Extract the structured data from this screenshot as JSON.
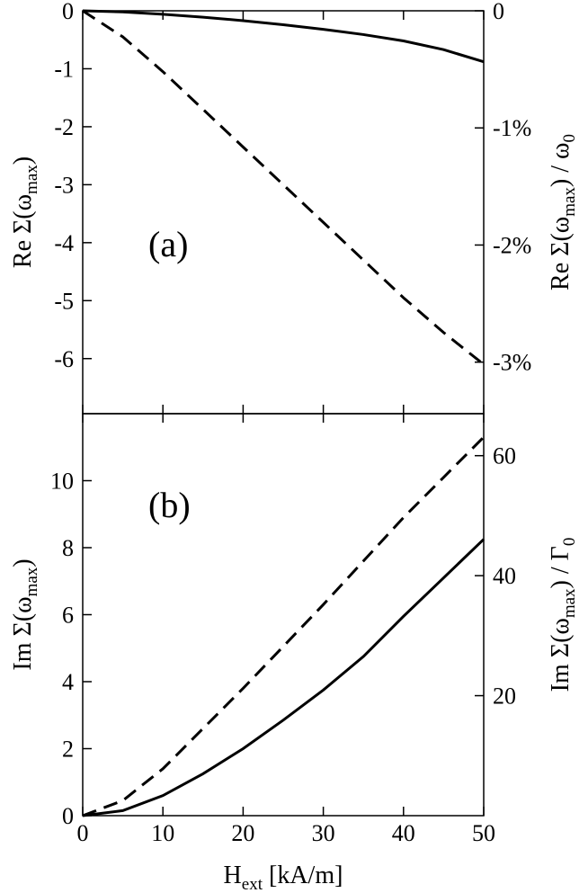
{
  "chart_data": [
    {
      "type": "line",
      "annotation": "(a)",
      "ylabel": [
        "Re Σ(ω",
        "max",
        ")"
      ],
      "y2label": [
        "Re Σ(ω",
        "max",
        ") / ω",
        "0"
      ],
      "x": [
        0,
        5,
        10,
        15,
        20,
        25,
        30,
        35,
        40,
        45,
        50
      ],
      "xlim": [
        0,
        50
      ],
      "xticks": [
        0,
        10,
        20,
        30,
        40,
        50
      ],
      "ylim": [
        -6.95,
        0
      ],
      "yticks": [
        0,
        -1,
        -2,
        -3,
        -4,
        -5,
        -6
      ],
      "y2lim": [
        -3.44,
        0
      ],
      "y2ticks": [
        0,
        {
          "value": -1,
          "label": "-1%"
        },
        {
          "value": -2,
          "label": "-2%"
        },
        {
          "value": -3,
          "label": "-3%"
        }
      ],
      "series": [
        {
          "color": "#000000",
          "dash": false,
          "values": [
            0,
            -0.02,
            -0.06,
            -0.11,
            -0.17,
            -0.24,
            -0.32,
            -0.41,
            -0.52,
            -0.67,
            -0.88
          ]
        },
        {
          "color": "#000000",
          "dash": true,
          "values": [
            0,
            -0.45,
            -1.05,
            -1.7,
            -2.35,
            -3.0,
            -3.65,
            -4.3,
            -4.95,
            -5.55,
            -6.1
          ]
        }
      ]
    },
    {
      "type": "line",
      "annotation": "(b)",
      "ylabel": [
        "Im Σ(ω",
        "max",
        ")"
      ],
      "y2label": [
        "Im Σ(ω",
        "max",
        ") / Γ",
        "0"
      ],
      "xlabel": [
        "H",
        "ext",
        " [kA/m]"
      ],
      "x": [
        0,
        5,
        10,
        15,
        20,
        25,
        30,
        35,
        40,
        45,
        50
      ],
      "xlim": [
        0,
        50
      ],
      "xticks": [
        0,
        10,
        20,
        30,
        40,
        50
      ],
      "ylim": [
        0,
        12
      ],
      "yticks": [
        0,
        2,
        4,
        6,
        8,
        10
      ],
      "y2lim": [
        0,
        67
      ],
      "y2ticks": [
        20,
        40,
        60
      ],
      "series": [
        {
          "color": "#000000",
          "dash": false,
          "values": [
            0,
            0.15,
            0.6,
            1.25,
            2.0,
            2.85,
            3.75,
            4.75,
            5.95,
            7.1,
            8.25
          ]
        },
        {
          "color": "#000000",
          "dash": true,
          "values": [
            0,
            0.45,
            1.4,
            2.6,
            3.8,
            5.05,
            6.3,
            7.6,
            8.9,
            10.1,
            11.3
          ]
        }
      ]
    }
  ]
}
